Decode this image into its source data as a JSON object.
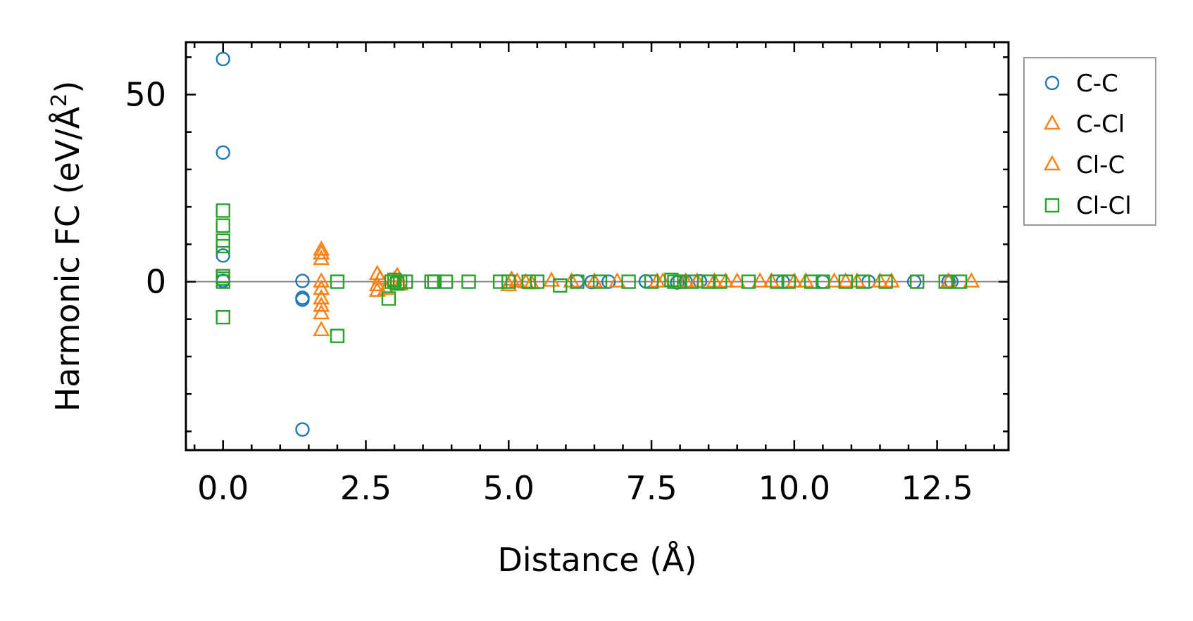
{
  "chart_data": {
    "type": "scatter",
    "xlabel": "Distance (Å)",
    "ylabel_main": "Harmonic FC (eV/Å",
    "ylabel_sup": "2",
    "ylabel_close": ")",
    "xlim": [
      -0.65,
      13.75
    ],
    "ylim": [
      -45,
      64
    ],
    "x_ticks": [
      0.0,
      2.5,
      5.0,
      7.5,
      10.0,
      12.5
    ],
    "x_tick_labels": [
      "0.0",
      "2.5",
      "5.0",
      "7.5",
      "10.0",
      "12.5"
    ],
    "x_minor_step": 0.5,
    "y_ticks": [
      0,
      50
    ],
    "y_tick_labels": [
      "0",
      "50"
    ],
    "y_minor_step": 10,
    "zero_line": true,
    "grid": false,
    "legend_position": "outside-right",
    "series": [
      {
        "name": "C-C",
        "marker": "circle",
        "color": "#1f77b4",
        "x": [
          0.0,
          0.0,
          0.0,
          0.0,
          1.39,
          1.39,
          1.39,
          1.39,
          6.2,
          6.45,
          6.75,
          7.4,
          7.95,
          8.1,
          8.35,
          9.8,
          10.5,
          11.3,
          12.1,
          12.7,
          12.75
        ],
        "y": [
          59.5,
          34.5,
          7.0,
          0.2,
          0.2,
          -4.3,
          -4.8,
          -39.5,
          0.1,
          -0.1,
          0.0,
          0.1,
          -0.2,
          0.0,
          0.1,
          0.0,
          0.0,
          0.0,
          0.0,
          0.0,
          0.0
        ]
      },
      {
        "name": "C-Cl",
        "marker": "triangle",
        "color": "#ff7f0e",
        "x": [
          1.72,
          1.72,
          1.72,
          1.72,
          1.72,
          1.72,
          2.7,
          2.7,
          2.7,
          3.05,
          3.1,
          5.0,
          5.15,
          5.4,
          5.75,
          6.5,
          7.6,
          8.3,
          8.8,
          9.4,
          10.0,
          10.7,
          11.1,
          11.7,
          13.1
        ],
        "y": [
          7.5,
          6.0,
          0.0,
          -2.0,
          -6.5,
          -13.0,
          2.0,
          -1.0,
          -2.5,
          1.5,
          -0.8,
          -1.0,
          0.0,
          -0.5,
          0.2,
          0.0,
          0.0,
          0.0,
          0.0,
          0.0,
          0.0,
          0.0,
          0.0,
          0.0,
          0.0
        ]
      },
      {
        "name": "Cl-C",
        "marker": "triangle",
        "color": "#ff7f0e",
        "x": [
          1.72,
          1.72,
          1.72,
          2.75,
          2.85,
          3.0,
          5.05,
          5.3,
          6.1,
          6.9,
          7.7,
          8.1,
          8.6,
          9.0,
          9.6,
          10.2,
          10.9,
          11.5,
          12.7
        ],
        "y": [
          8.5,
          -4.5,
          -8.5,
          0.8,
          -2.0,
          0.5,
          0.5,
          -0.2,
          0.0,
          0.0,
          0.0,
          0.0,
          0.0,
          0.0,
          0.0,
          0.0,
          0.0,
          0.0,
          0.0
        ]
      },
      {
        "name": "Cl-Cl",
        "marker": "square",
        "color": "#2ca02c",
        "x": [
          0.0,
          0.0,
          0.0,
          0.0,
          0.0,
          0.0,
          0.0,
          0.0,
          2.0,
          2.0,
          2.9,
          2.95,
          3.0,
          3.05,
          3.1,
          3.2,
          3.65,
          3.7,
          3.9,
          4.3,
          4.85,
          5.0,
          5.35,
          5.5,
          5.9,
          6.2,
          6.6,
          7.1,
          7.5,
          7.85,
          7.9,
          8.0,
          8.2,
          8.5,
          8.7,
          9.2,
          9.7,
          9.9,
          10.3,
          10.5,
          10.9,
          11.2,
          11.6,
          12.15,
          12.65,
          12.9
        ],
        "y": [
          19.0,
          15.0,
          11.0,
          9.5,
          1.5,
          0.8,
          0.0,
          -9.5,
          -14.5,
          0.0,
          -4.5,
          0.0,
          0.5,
          -0.5,
          0.0,
          0.0,
          0.0,
          0.0,
          0.0,
          0.0,
          0.0,
          0.0,
          0.0,
          0.0,
          -1.0,
          0.0,
          0.0,
          0.0,
          0.0,
          0.5,
          0.0,
          0.0,
          0.0,
          0.0,
          0.0,
          0.0,
          0.0,
          0.0,
          0.0,
          0.0,
          0.0,
          0.0,
          0.0,
          0.0,
          0.0,
          0.0
        ]
      }
    ]
  }
}
